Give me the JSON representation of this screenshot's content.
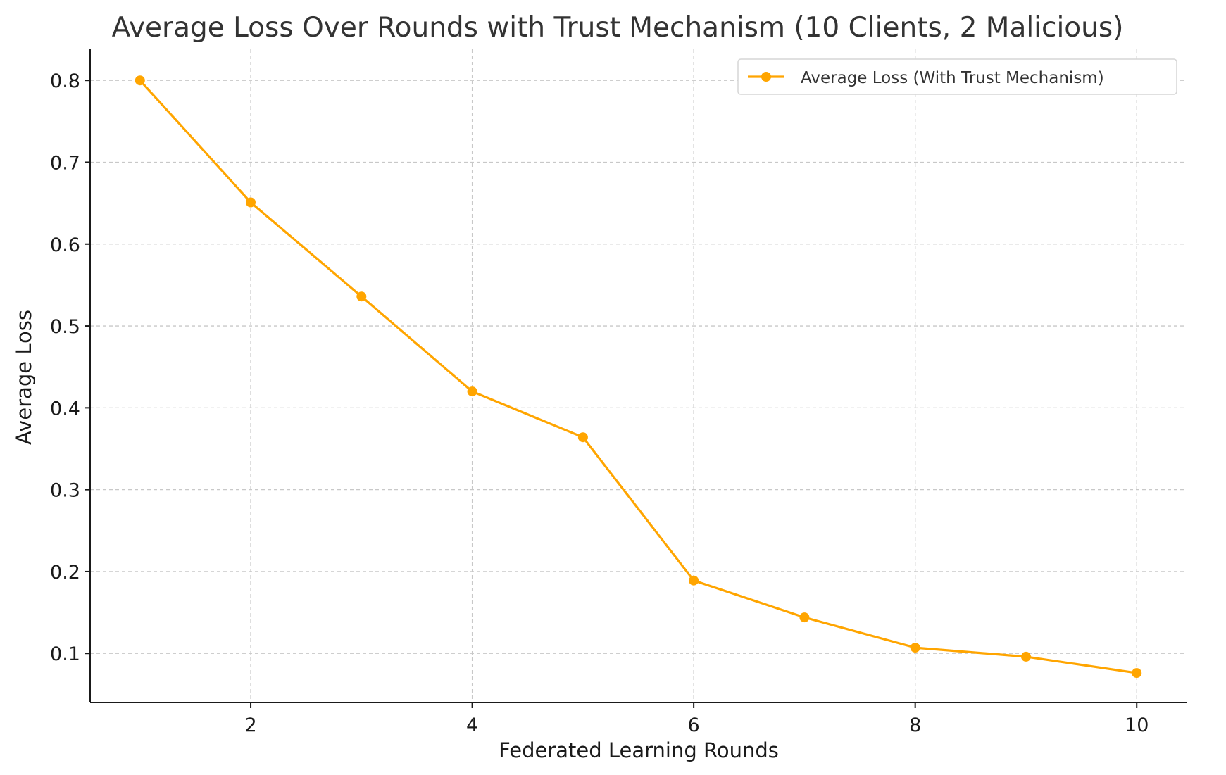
{
  "chart_data": {
    "type": "line",
    "title": "Average Loss Over Rounds with Trust Mechanism (10 Clients, 2 Malicious)",
    "xlabel": "Federated Learning Rounds",
    "ylabel": "Average Loss",
    "x": [
      1,
      2,
      3,
      4,
      5,
      6,
      7,
      8,
      9,
      10
    ],
    "series": [
      {
        "name": "Average Loss (With Trust Mechanism)",
        "color": "#FFA500",
        "marker": "circle",
        "values": [
          0.8,
          0.651,
          0.536,
          0.42,
          0.364,
          0.189,
          0.144,
          0.107,
          0.096,
          0.076
        ]
      }
    ],
    "xlim": [
      0.55,
      10.45
    ],
    "ylim": [
      0.04,
      0.838
    ],
    "xticks": [
      2,
      4,
      6,
      8,
      10
    ],
    "xtick_labels": [
      "2",
      "4",
      "6",
      "8",
      "10"
    ],
    "yticks": [
      0.1,
      0.2,
      0.3,
      0.4,
      0.5,
      0.6,
      0.7,
      0.8
    ],
    "ytick_labels": [
      "0.1",
      "0.2",
      "0.3",
      "0.4",
      "0.5",
      "0.6",
      "0.7",
      "0.8"
    ],
    "grid": true,
    "legend_position": "top-right"
  }
}
